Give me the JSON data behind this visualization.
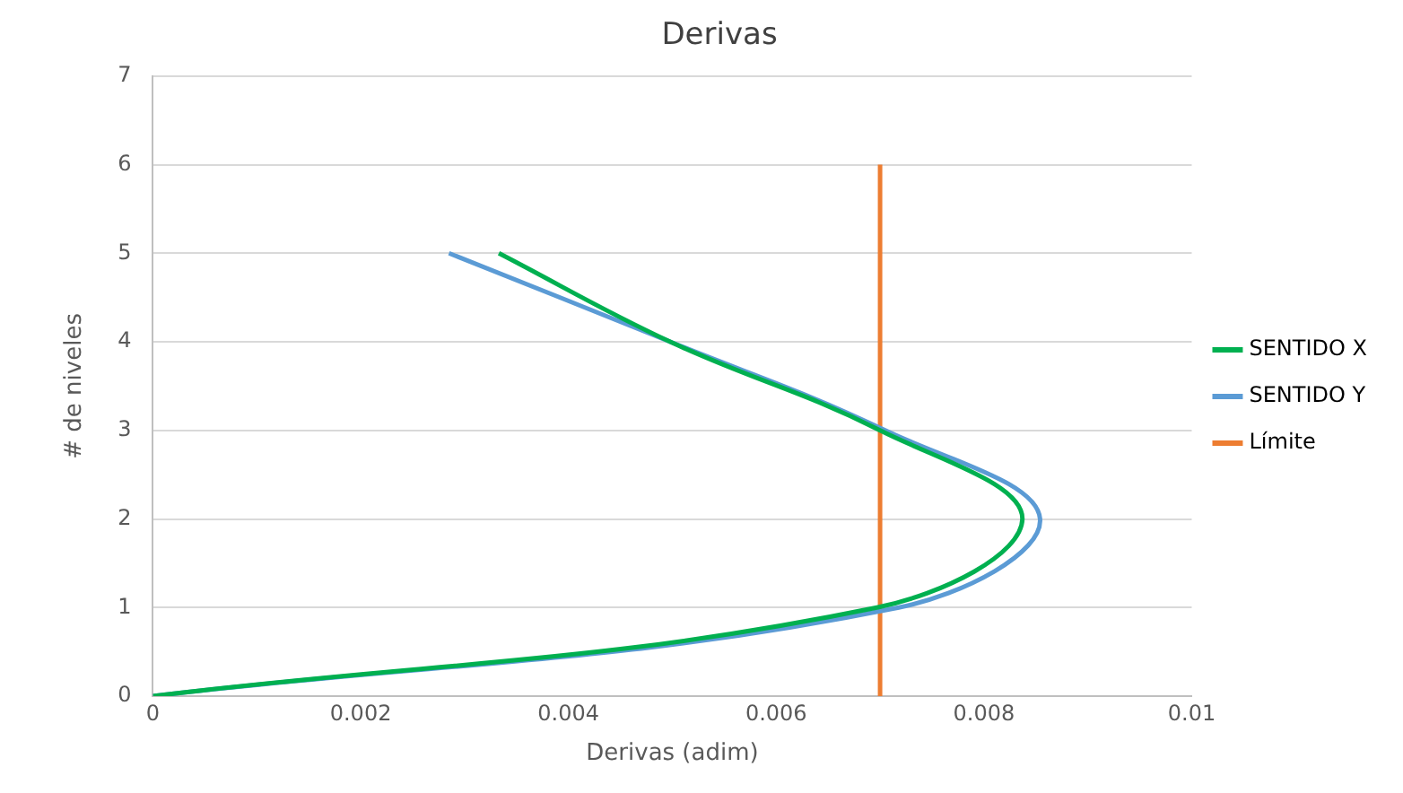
{
  "chart_data": {
    "type": "line",
    "title": "Derivas",
    "xlabel": "Derivas (adim)",
    "ylabel": "# de niveles",
    "x": [
      0,
      0.00697,
      0.00837,
      0.007,
      0.00498,
      0.00333
    ],
    "series": [
      {
        "name": "SENTIDO X",
        "color": "#00b050",
        "values": [
          0,
          1,
          2,
          3,
          4,
          5
        ]
      },
      {
        "name": "SENTIDO Y",
        "color": "#5b9bd5",
        "x": [
          0,
          0.00718,
          0.00854,
          0.00705,
          0.00498,
          0.00285
        ],
        "values": [
          0,
          1,
          2,
          3,
          4,
          5
        ]
      },
      {
        "name": "Límite",
        "color": "#ed7d31",
        "x": [
          0.007,
          0.007
        ],
        "values": [
          0,
          6
        ]
      }
    ],
    "xlim": [
      0,
      0.01
    ],
    "xticks": [
      0,
      0.002,
      0.004,
      0.006,
      0.008,
      0.01
    ],
    "ylim": [
      0,
      7
    ],
    "yticks": [
      0,
      1,
      2,
      3,
      4,
      5,
      6,
      7
    ],
    "grid": "y",
    "legend": "right",
    "marker": "none",
    "line_style": "solid"
  }
}
